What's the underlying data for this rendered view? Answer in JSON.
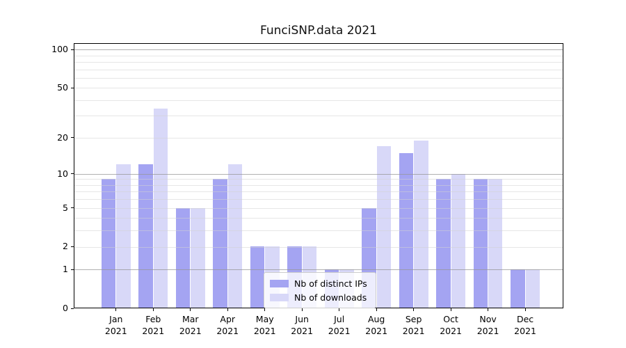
{
  "chart_data": {
    "type": "bar",
    "title": "FunciSNP.data 2021",
    "categories": [
      "Jan 2021",
      "Feb 2021",
      "Mar 2021",
      "Apr 2021",
      "May 2021",
      "Jun 2021",
      "Jul 2021",
      "Aug 2021",
      "Sep 2021",
      "Oct 2021",
      "Nov 2021",
      "Dec 2021"
    ],
    "series": [
      {
        "name": "Nb of distinct IPs",
        "color": "#a4a4f2",
        "values": [
          9,
          12,
          5,
          9,
          2,
          2,
          1,
          5,
          15,
          9,
          9,
          1
        ]
      },
      {
        "name": "Nb of downloads",
        "color": "#d8d8f8",
        "values": [
          12,
          34,
          5,
          12,
          2,
          2,
          1,
          17,
          19,
          10,
          9,
          1
        ]
      }
    ],
    "yscale": "log1p",
    "ylim": [
      0,
      112
    ],
    "yticks": [
      0,
      1,
      2,
      5,
      10,
      20,
      50,
      100
    ],
    "major_gridlines": [
      1,
      10,
      100
    ],
    "minor_gridlines": [
      2,
      3,
      4,
      5,
      6,
      7,
      8,
      9,
      20,
      30,
      40,
      50,
      60,
      70,
      80,
      90
    ],
    "grid": "horizontal",
    "legend_position": "lower center",
    "xlabel": "",
    "ylabel": ""
  },
  "colors": {
    "axis": "#000000",
    "grid_minor": "#e6e6e6",
    "grid_major": "#b3b3b3",
    "background": "#ffffff"
  }
}
